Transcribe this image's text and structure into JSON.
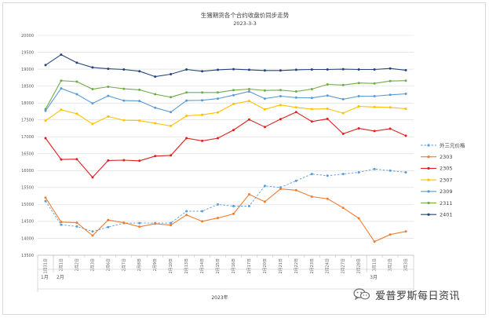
{
  "chart_data": {
    "type": "line",
    "title": "生猪期货各个合约收盘价同步走势",
    "subtitle": "2023-3-3",
    "xlabel": "2023年",
    "ylim": [
      13500,
      20000
    ],
    "yticks": [
      13500,
      14000,
      14500,
      15000,
      15500,
      16000,
      16500,
      17000,
      17500,
      18000,
      18500,
      19000,
      19500,
      20000
    ],
    "grid": true,
    "legend_position": "right",
    "x": [
      "1月31日",
      "2月1日",
      "2月2日",
      "2月3日",
      "2月6日",
      "2月7日",
      "2月8日",
      "2月9日",
      "2月10日",
      "2月13日",
      "2月14日",
      "2月15日",
      "2月16日",
      "2月17日",
      "2月20日",
      "2月21日",
      "2月22日",
      "2月23日",
      "2月24日",
      "2月27日",
      "2月28日",
      "3月1日",
      "3月2日",
      "3月3日"
    ],
    "month_groups": [
      {
        "label": "1月",
        "start": 0,
        "end": 0
      },
      {
        "label": "2月",
        "start": 1,
        "end": 20
      },
      {
        "label": "3月",
        "start": 21,
        "end": 23
      }
    ],
    "series": [
      {
        "name": "外三元价格",
        "color": "#5b9bd5",
        "dashed": true,
        "values": [
          15100,
          14400,
          14350,
          14200,
          14330,
          14450,
          14450,
          14450,
          14450,
          14800,
          14800,
          15000,
          14950,
          14950,
          15550,
          15500,
          15700,
          15900,
          15850,
          15900,
          15950,
          16050,
          16000,
          15950
        ]
      },
      {
        "name": "2303",
        "color": "#ed7d31",
        "values": [
          15200,
          14480,
          14460,
          14080,
          14540,
          14460,
          14340,
          14430,
          14390,
          14690,
          14500,
          14600,
          14720,
          15300,
          15080,
          15460,
          15420,
          15230,
          15170,
          14900,
          14590,
          13900,
          14110,
          14200
        ]
      },
      {
        "name": "2305",
        "color": "#e02020",
        "values": [
          16960,
          16330,
          16340,
          15800,
          16300,
          16310,
          16290,
          16430,
          16450,
          16960,
          16880,
          16960,
          17200,
          17510,
          17290,
          17520,
          17730,
          17450,
          17530,
          17090,
          17250,
          17170,
          17240,
          17030
        ]
      },
      {
        "name": "2307",
        "color": "#ffc000",
        "values": [
          17480,
          17800,
          17680,
          17380,
          17600,
          17490,
          17480,
          17400,
          17320,
          17620,
          17650,
          17720,
          17970,
          18060,
          17810,
          17940,
          17870,
          17820,
          17830,
          17700,
          17900,
          17880,
          17870,
          17830
        ]
      },
      {
        "name": "2309",
        "color": "#5b9bd5",
        "values": [
          17770,
          18430,
          18260,
          17990,
          18210,
          18070,
          18060,
          17860,
          17730,
          18070,
          18080,
          18130,
          18230,
          18340,
          18130,
          18200,
          18160,
          18150,
          18220,
          18110,
          18200,
          18200,
          18240,
          18270
        ]
      },
      {
        "name": "2311",
        "color": "#70ad47",
        "values": [
          17820,
          18660,
          18630,
          18410,
          18480,
          18420,
          18390,
          18260,
          18170,
          18310,
          18310,
          18310,
          18380,
          18410,
          18370,
          18380,
          18340,
          18410,
          18550,
          18530,
          18590,
          18580,
          18650,
          18660
        ]
      },
      {
        "name": "2401",
        "color": "#264478",
        "values": [
          19120,
          19430,
          19190,
          19050,
          19010,
          18990,
          18940,
          18780,
          18850,
          18990,
          18940,
          18980,
          19000,
          18980,
          18960,
          18960,
          18980,
          18990,
          18990,
          19000,
          18990,
          18990,
          19020,
          18970
        ]
      }
    ]
  },
  "watermark": {
    "text": "爱普罗斯每日资讯",
    "icon": "wechat-icon"
  }
}
